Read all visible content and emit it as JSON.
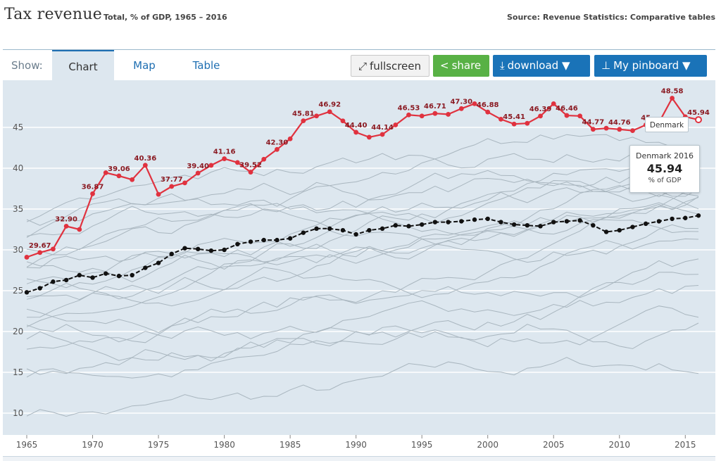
{
  "header": {
    "title": "Tax revenue",
    "subtitle": "Total, % of GDP, 1965 – 2016",
    "source": "Source: Revenue Statistics: Comparative tables"
  },
  "toolbar": {
    "show_label": "Show:",
    "tabs": [
      "Chart",
      "Map",
      "Table"
    ],
    "fullscreen_label": "fullscreen",
    "share_label": "share",
    "download_label": "download ▼",
    "pinboard_label": "My pinboard ▼"
  },
  "tooltip": {
    "hover_label": "Denmark",
    "country_year": "Denmark 2016",
    "value": "45.94",
    "unit": "% of GDP"
  },
  "colors": {
    "highlight": "#e0323f",
    "average": "#111111",
    "background_lines": "#a9b6bf",
    "plot_bg": "#dde7ef"
  },
  "chart_data": {
    "type": "line",
    "title": "Tax revenue",
    "ylim": [
      8,
      50
    ],
    "xlim": [
      1965,
      2016
    ],
    "yticks": [
      10,
      15,
      20,
      25,
      30,
      35,
      40,
      45
    ],
    "xticks": [
      1965,
      1970,
      1975,
      1980,
      1985,
      1990,
      1995,
      2000,
      2005,
      2010,
      2015
    ],
    "grid": "horizontal",
    "highlight_series": {
      "name": "Denmark",
      "x": [
        1965,
        1966,
        1967,
        1968,
        1969,
        1970,
        1971,
        1972,
        1973,
        1974,
        1975,
        1976,
        1977,
        1978,
        1979,
        1980,
        1981,
        1982,
        1983,
        1984,
        1985,
        1986,
        1987,
        1988,
        1989,
        1990,
        1991,
        1992,
        1993,
        1994,
        1995,
        1996,
        1997,
        1998,
        1999,
        2000,
        2001,
        2002,
        2003,
        2004,
        2005,
        2006,
        2007,
        2008,
        2009,
        2010,
        2011,
        2012,
        2013,
        2014,
        2015,
        2016
      ],
      "values": [
        29.1,
        29.67,
        30.1,
        32.9,
        32.5,
        36.87,
        39.45,
        39.06,
        38.6,
        40.36,
        36.8,
        37.77,
        38.2,
        39.4,
        40.35,
        41.16,
        40.7,
        39.52,
        41.1,
        42.3,
        43.6,
        45.81,
        46.4,
        46.92,
        45.8,
        44.4,
        43.8,
        44.14,
        45.3,
        46.53,
        46.4,
        46.71,
        46.6,
        47.3,
        47.9,
        46.88,
        46.0,
        45.41,
        45.5,
        46.39,
        47.9,
        46.46,
        46.4,
        44.77,
        44.9,
        44.76,
        44.6,
        45.3,
        45.6,
        48.58,
        46.3,
        45.94
      ],
      "labels": {
        "1966": "29.67",
        "1968": "32.90",
        "1970": "36.87",
        "1972": "39.06",
        "1974": "40.36",
        "1976": "37.77",
        "1978": "39.40",
        "1980": "41.16",
        "1982": "39.52",
        "1984": "42.30",
        "1986": "45.81",
        "1988": "46.92",
        "1990": "44.40",
        "1992": "44.14",
        "1994": "46.53",
        "1996": "46.71",
        "1998": "47.30",
        "2000": "46.88",
        "2002": "45.41",
        "2004": "46.39",
        "2006": "46.46",
        "2008": "44.77",
        "2010": "44.76",
        "2012": "45",
        "2014": "48.58",
        "2016": "45.94"
      }
    },
    "average_series": {
      "x": [
        1965,
        1966,
        1967,
        1968,
        1969,
        1970,
        1971,
        1972,
        1973,
        1974,
        1975,
        1976,
        1977,
        1978,
        1979,
        1980,
        1981,
        1982,
        1983,
        1984,
        1985,
        1986,
        1987,
        1988,
        1989,
        1990,
        1991,
        1992,
        1993,
        1994,
        1995,
        1996,
        1997,
        1998,
        1999,
        2000,
        2001,
        2002,
        2003,
        2004,
        2005,
        2006,
        2007,
        2008,
        2009,
        2010,
        2011,
        2012,
        2013,
        2014,
        2015,
        2016
      ],
      "values": [
        24.8,
        25.3,
        26.1,
        26.3,
        26.9,
        26.6,
        27.1,
        26.8,
        26.9,
        27.8,
        28.4,
        29.5,
        30.2,
        30.1,
        29.9,
        30.0,
        30.7,
        31.0,
        31.2,
        31.2,
        31.4,
        32.1,
        32.6,
        32.6,
        32.4,
        31.9,
        32.4,
        32.6,
        33.0,
        32.9,
        33.1,
        33.4,
        33.4,
        33.5,
        33.7,
        33.8,
        33.4,
        33.1,
        33.0,
        32.9,
        33.4,
        33.5,
        33.6,
        33.0,
        32.2,
        32.4,
        32.8,
        33.2,
        33.5,
        33.8,
        33.9,
        34.2
      ]
    }
  }
}
